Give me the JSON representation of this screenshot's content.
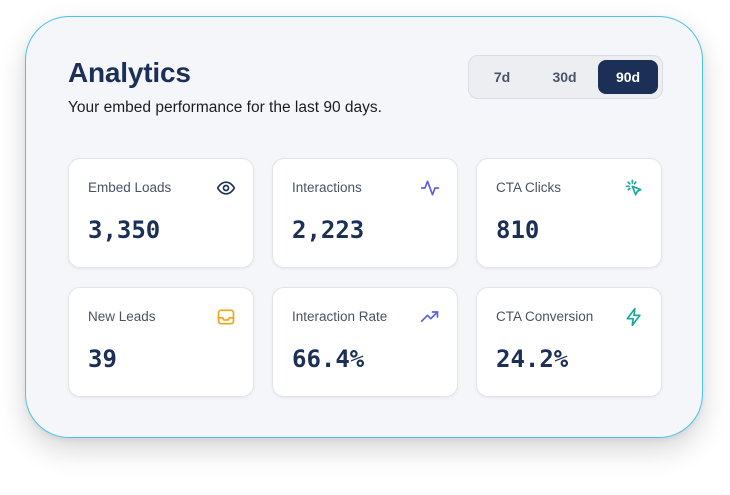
{
  "header": {
    "title": "Analytics",
    "subtitle": "Your embed performance for the last 90 days."
  },
  "range_selector": {
    "options": [
      "7d",
      "30d",
      "90d"
    ],
    "selected": "90d"
  },
  "colors": {
    "navy": "#1b2f57",
    "purple_icon": "#5b5ee8",
    "teal_icon": "#16a99a",
    "orange_icon": "#f0a21a",
    "panel_border": "#4cc3e6"
  },
  "metrics": [
    {
      "label": "Embed Loads",
      "value": "3,350",
      "icon": "eye-icon"
    },
    {
      "label": "Interactions",
      "value": "2,223",
      "icon": "activity-icon"
    },
    {
      "label": "CTA Clicks",
      "value": "810",
      "icon": "cursor-click-icon"
    },
    {
      "label": "New Leads",
      "value": "39",
      "icon": "inbox-icon"
    },
    {
      "label": "Interaction Rate",
      "value": "66.4%",
      "icon": "trending-up-icon"
    },
    {
      "label": "CTA Conversion",
      "value": "24.2%",
      "icon": "zap-icon"
    }
  ]
}
